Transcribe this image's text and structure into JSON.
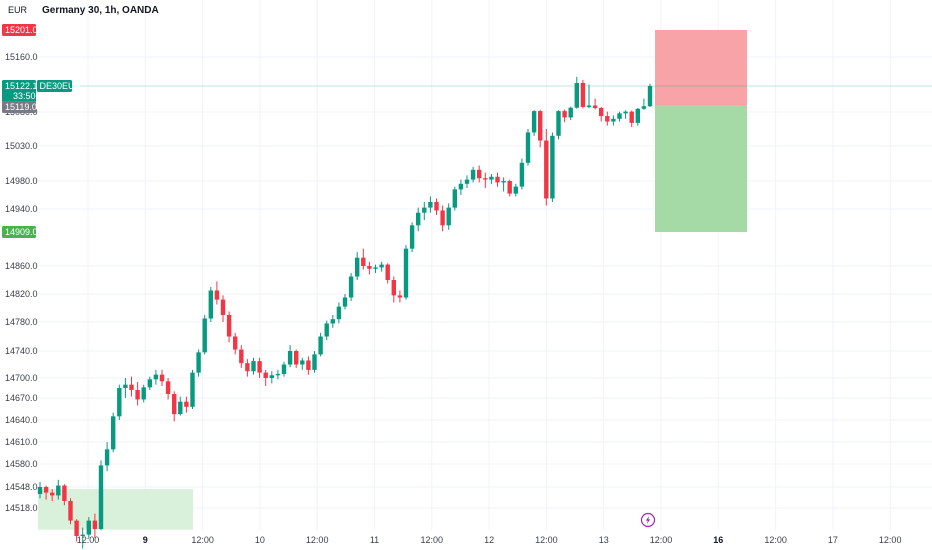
{
  "chart_title": "Germany 30, 1h, OANDA",
  "currency": "EUR",
  "symbol_tag": "DE30EUR",
  "colors": {
    "up": "#089981",
    "down": "#f23645",
    "sl_zone": "#f7a3a8",
    "tp_zone": "#a5d9a6",
    "demand_zone": "#d9f0da",
    "last_line": "#089981"
  },
  "price_labels": {
    "stop": "15201.0",
    "last": "15122.1",
    "countdown": "33:50",
    "entry": "15119.0",
    "target": "14909.0"
  },
  "chart_data": {
    "type": "candlestick",
    "y_ticks": [
      "15160.0",
      "15080.0",
      "15030.0",
      "14980.0",
      "14940.0",
      "14860.0",
      "14820.0",
      "14780.0",
      "14740.0",
      "14700.0",
      "14670.0",
      "14640.0",
      "14610.0",
      "14580.0",
      "14548.0",
      "14518.0"
    ],
    "x_ticks": [
      {
        "label": "12:00",
        "bold": false
      },
      {
        "label": "9",
        "bold": true
      },
      {
        "label": "12:00",
        "bold": false
      },
      {
        "label": "10",
        "bold": false
      },
      {
        "label": "12:00",
        "bold": false
      },
      {
        "label": "11",
        "bold": false
      },
      {
        "label": "12:00",
        "bold": false
      },
      {
        "label": "12",
        "bold": false
      },
      {
        "label": "12:00",
        "bold": false
      },
      {
        "label": "13",
        "bold": false
      },
      {
        "label": "12:00",
        "bold": false
      },
      {
        "label": "16",
        "bold": true
      },
      {
        "label": "12:00",
        "bold": false
      },
      {
        "label": "17",
        "bold": false
      },
      {
        "label": "12:00",
        "bold": false
      }
    ],
    "position": {
      "entry": 15119.0,
      "stop": 15201.0,
      "target": 14909.0
    },
    "candles": [
      [
        14538,
        14555,
        14532,
        14548
      ],
      [
        14548,
        14550,
        14530,
        14540
      ],
      [
        14540,
        14545,
        14528,
        14536
      ],
      [
        14536,
        14558,
        14530,
        14550
      ],
      [
        14550,
        14552,
        14522,
        14528
      ],
      [
        14528,
        14532,
        14495,
        14500
      ],
      [
        14500,
        14502,
        14470,
        14478
      ],
      [
        14478,
        14490,
        14460,
        14480
      ],
      [
        14480,
        14505,
        14475,
        14500
      ],
      [
        14500,
        14510,
        14475,
        14488
      ],
      [
        14488,
        14585,
        14486,
        14578
      ],
      [
        14578,
        14610,
        14570,
        14600
      ],
      [
        14600,
        14650,
        14596,
        14645
      ],
      [
        14645,
        14690,
        14640,
        14685
      ],
      [
        14685,
        14700,
        14670,
        14690
      ],
      [
        14690,
        14702,
        14672,
        14682
      ],
      [
        14682,
        14694,
        14660,
        14668
      ],
      [
        14668,
        14690,
        14664,
        14686
      ],
      [
        14686,
        14702,
        14682,
        14698
      ],
      [
        14698,
        14712,
        14690,
        14705
      ],
      [
        14705,
        14712,
        14688,
        14695
      ],
      [
        14695,
        14700,
        14668,
        14676
      ],
      [
        14676,
        14680,
        14638,
        14648
      ],
      [
        14648,
        14672,
        14646,
        14665
      ],
      [
        14665,
        14672,
        14650,
        14658
      ],
      [
        14658,
        14712,
        14655,
        14708
      ],
      [
        14708,
        14742,
        14702,
        14738
      ],
      [
        14738,
        14790,
        14735,
        14785
      ],
      [
        14785,
        14830,
        14780,
        14825
      ],
      [
        14825,
        14838,
        14805,
        14812
      ],
      [
        14812,
        14818,
        14780,
        14790
      ],
      [
        14790,
        14795,
        14752,
        14760
      ],
      [
        14760,
        14765,
        14735,
        14742
      ],
      [
        14742,
        14748,
        14715,
        14722
      ],
      [
        14722,
        14728,
        14702,
        14710
      ],
      [
        14710,
        14730,
        14705,
        14725
      ],
      [
        14725,
        14730,
        14700,
        14708
      ],
      [
        14708,
        14712,
        14688,
        14700
      ],
      [
        14700,
        14710,
        14692,
        14704
      ],
      [
        14704,
        14712,
        14698,
        14706
      ],
      [
        14706,
        14724,
        14702,
        14720
      ],
      [
        14720,
        14748,
        14716,
        14740
      ],
      [
        14740,
        14742,
        14715,
        14720
      ],
      [
        14720,
        14730,
        14712,
        14726
      ],
      [
        14726,
        14732,
        14705,
        14712
      ],
      [
        14712,
        14740,
        14708,
        14735
      ],
      [
        14735,
        14765,
        14732,
        14760
      ],
      [
        14760,
        14782,
        14755,
        14778
      ],
      [
        14778,
        14790,
        14772,
        14784
      ],
      [
        14784,
        14808,
        14778,
        14802
      ],
      [
        14802,
        14820,
        14798,
        14815
      ],
      [
        14815,
        14850,
        14810,
        14845
      ],
      [
        14845,
        14880,
        14840,
        14872
      ],
      [
        14872,
        14885,
        14855,
        14860
      ],
      [
        14860,
        14866,
        14848,
        14856
      ],
      [
        14856,
        14862,
        14850,
        14858
      ],
      [
        14858,
        14866,
        14852,
        14862
      ],
      [
        14862,
        14864,
        14835,
        14840
      ],
      [
        14840,
        14845,
        14808,
        14818
      ],
      [
        14818,
        14825,
        14808,
        14815
      ],
      [
        14815,
        14890,
        14812,
        14885
      ],
      [
        14885,
        14922,
        14880,
        14918
      ],
      [
        14918,
        14942,
        14910,
        14935
      ],
      [
        14935,
        14950,
        14925,
        14942
      ],
      [
        14942,
        14958,
        14935,
        14950
      ],
      [
        14950,
        14955,
        14932,
        14938
      ],
      [
        14938,
        14945,
        14910,
        14918
      ],
      [
        14918,
        14948,
        14912,
        14942
      ],
      [
        14942,
        14972,
        14938,
        14968
      ],
      [
        14968,
        14982,
        14960,
        14976
      ],
      [
        14976,
        14988,
        14970,
        14982
      ],
      [
        14982,
        15000,
        14978,
        14996
      ],
      [
        14996,
        15002,
        14978,
        14984
      ],
      [
        14984,
        14992,
        14970,
        14982
      ],
      [
        14982,
        14990,
        14976,
        14986
      ],
      [
        14986,
        14992,
        14972,
        14978
      ],
      [
        14978,
        14985,
        14965,
        14980
      ],
      [
        14980,
        14982,
        14958,
        14962
      ],
      [
        14962,
        14976,
        14958,
        14972
      ],
      [
        14972,
        15012,
        14968,
        15006
      ],
      [
        15006,
        15055,
        15002,
        15050
      ],
      [
        15050,
        15090,
        15045,
        15085
      ],
      [
        15085,
        15092,
        15028,
        15038
      ],
      [
        15038,
        15055,
        14945,
        14955
      ],
      [
        14955,
        15050,
        14950,
        15045
      ],
      [
        15045,
        15090,
        15040,
        15085
      ],
      [
        15085,
        15094,
        15065,
        15072
      ],
      [
        15072,
        15110,
        15068,
        15104
      ],
      [
        15104,
        15134,
        15098,
        15126
      ],
      [
        15126,
        15130,
        15100,
        15108
      ],
      [
        15108,
        15124,
        15100,
        15116
      ],
      [
        15116,
        15120,
        15094,
        15102
      ],
      [
        15102,
        15108,
        15066,
        15074
      ],
      [
        15074,
        15082,
        15060,
        15066
      ],
      [
        15066,
        15075,
        15060,
        15070
      ],
      [
        15070,
        15082,
        15066,
        15078
      ],
      [
        15078,
        15090,
        15070,
        15082
      ],
      [
        15082,
        15088,
        15058,
        15064
      ],
      [
        15064,
        15102,
        15060,
        15098
      ],
      [
        15098,
        15120,
        15092,
        15112
      ],
      [
        15112,
        15125,
        15108,
        15122
      ]
    ]
  }
}
